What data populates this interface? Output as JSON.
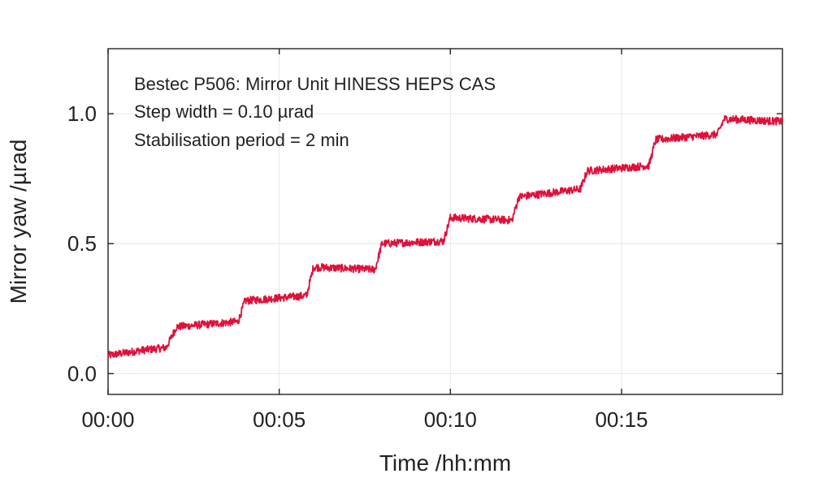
{
  "chart_data": {
    "type": "line",
    "xlabel": "Time /hh:mm",
    "ylabel": "Mirror yaw /µrad",
    "xlim_minutes": [
      0,
      19.7
    ],
    "ylim": [
      -0.08,
      1.25
    ],
    "x_ticks": [
      {
        "value": 0,
        "label": "00:00"
      },
      {
        "value": 5,
        "label": "00:05"
      },
      {
        "value": 10,
        "label": "00:10"
      },
      {
        "value": 15,
        "label": "00:15"
      }
    ],
    "y_ticks": [
      {
        "value": 0.0,
        "label": "0.0"
      },
      {
        "value": 0.5,
        "label": "0.5"
      },
      {
        "value": 1.0,
        "label": "1.0"
      }
    ],
    "grid": true,
    "annotations": [
      "Bestec P506: Mirror Unit HINESS HEPS CAS",
      "Step width = 0.10 µrad",
      "Stabilisation period = 2 min"
    ],
    "series": [
      {
        "color": "#e0103a",
        "x": [
          0.0,
          1.0,
          1.7,
          2.0,
          3.8,
          4.0,
          5.8,
          6.0,
          7.8,
          8.0,
          9.8,
          10.0,
          11.8,
          12.0,
          13.8,
          14.0,
          15.8,
          16.0,
          17.8,
          18.0,
          19.7
        ],
        "y": [
          0.07,
          0.09,
          0.1,
          0.18,
          0.2,
          0.28,
          0.3,
          0.41,
          0.4,
          0.5,
          0.51,
          0.6,
          0.59,
          0.68,
          0.71,
          0.78,
          0.8,
          0.9,
          0.92,
          0.98,
          0.97
        ]
      }
    ]
  }
}
